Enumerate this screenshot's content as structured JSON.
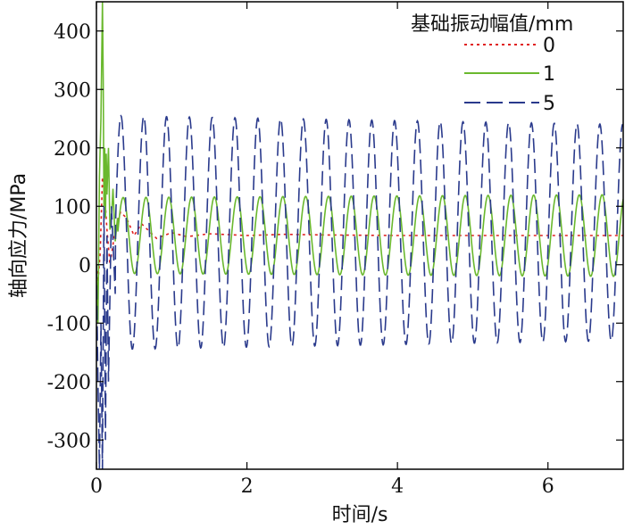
{
  "chart_data": {
    "type": "line",
    "title": "",
    "xlabel": "时间/s",
    "ylabel": "轴向应力/MPa",
    "xlim": [
      0,
      7
    ],
    "ylim": [
      -350,
      450
    ],
    "xticks": [
      0,
      2,
      4,
      6
    ],
    "yticks": [
      -300,
      -200,
      -100,
      0,
      100,
      200,
      300,
      400
    ],
    "grid": false,
    "legend": {
      "title": "基础振动幅值/mm",
      "position": "top-right"
    },
    "series": [
      {
        "name": "0",
        "color": "#e02020",
        "dash": "dotted",
        "x": [
          0,
          0.02,
          0.05,
          0.08,
          0.11,
          0.14,
          0.18,
          0.25,
          0.32,
          0.4,
          0.5,
          0.6,
          0.8,
          1.0,
          1.2,
          1.5,
          2.0,
          2.5,
          3.0,
          4.0,
          5.0,
          6.0,
          7.0
        ],
        "y": [
          0,
          -30,
          20,
          150,
          120,
          60,
          0,
          60,
          90,
          80,
          50,
          70,
          45,
          55,
          48,
          53,
          50,
          52,
          51,
          50,
          50,
          50,
          50
        ]
      },
      {
        "name": "1",
        "color": "#6ab82e",
        "dash": "solid",
        "base": 50,
        "amp_start": 65,
        "amp_end": 70,
        "freq": 3.3,
        "transient_x": [
          0,
          0.02,
          0.04,
          0.06,
          0.08,
          0.09,
          0.1,
          0.11,
          0.12,
          0.13,
          0.14,
          0.16,
          0.18,
          0.2,
          0.22,
          0.25,
          0.28
        ],
        "transient_y": [
          0,
          -100,
          150,
          250,
          450,
          320,
          100,
          200,
          80,
          190,
          120,
          200,
          60,
          80,
          130,
          40,
          80
        ]
      },
      {
        "name": "5",
        "color": "#2a3a8c",
        "dash": "longdash",
        "base": 55,
        "amp_start": 200,
        "amp_end": 185,
        "freq": 3.3,
        "transient_x": [
          0,
          0.02,
          0.04,
          0.06,
          0.08,
          0.1,
          0.12,
          0.14,
          0.16,
          0.2,
          0.25
        ],
        "transient_y": [
          0,
          -200,
          -350,
          -100,
          -350,
          100,
          -300,
          50,
          -200,
          100,
          -50
        ]
      }
    ]
  }
}
